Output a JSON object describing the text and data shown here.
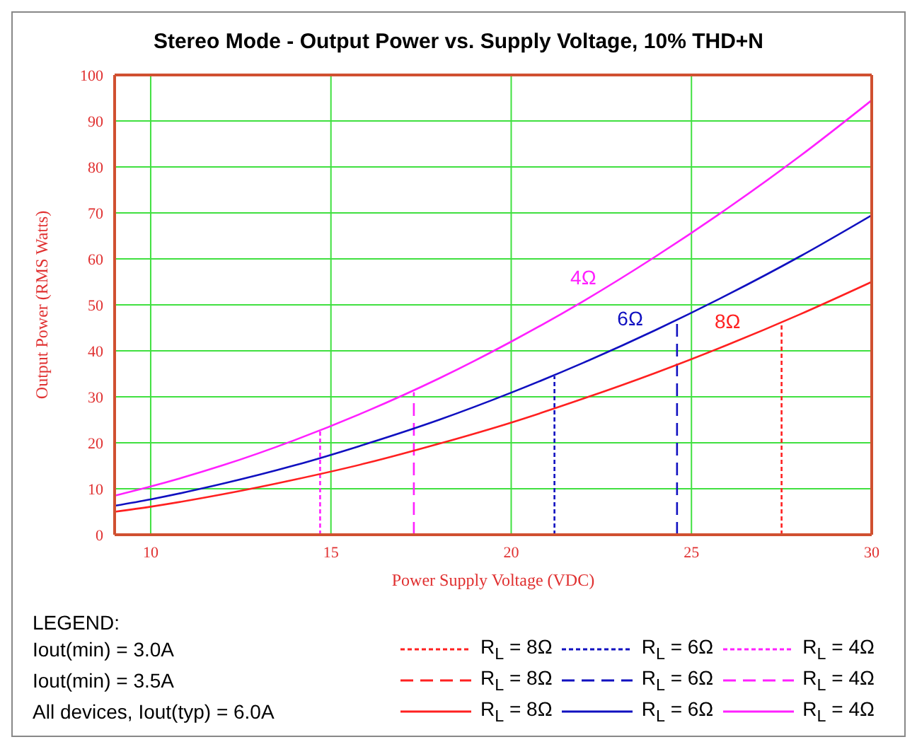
{
  "chart_data": {
    "type": "line",
    "title": "Stereo Mode - Output Power vs. Supply Voltage, 10% THD+N",
    "xlabel": "Power Supply Voltage (VDC)",
    "ylabel": "Output Power (RMS Watts)",
    "legend_title": "LEGEND:",
    "xlim": [
      9,
      30
    ],
    "xticks": [
      10,
      15,
      20,
      25,
      30
    ],
    "ylim": [
      0,
      100
    ],
    "yticks": [
      0,
      10,
      20,
      30,
      40,
      50,
      60,
      70,
      80,
      90,
      100
    ],
    "grid": true,
    "legend": "bottom",
    "series": [
      {
        "name": "R$_{L}$ = 8Ω",
        "color": "#ff2020",
        "line_style": "dotted",
        "x": [
          27.5,
          27.5
        ],
        "values": [
          0,
          46
        ]
      },
      {
        "name": "R$_{L}$ = 6Ω",
        "color": "#1010c0",
        "line_style": "dotted",
        "x": [
          21.2,
          21.2
        ],
        "values": [
          0,
          34.5
        ]
      },
      {
        "name": "R$_{L}$ = 4Ω",
        "color": "#ff20ff",
        "line_style": "dotted",
        "x": [
          14.7,
          14.7
        ],
        "values": [
          0,
          22.7
        ]
      },
      {
        "name": "R$_{L}$ = 8Ω",
        "color": "#ff2020",
        "line_style": "dashed"
      },
      {
        "name": "R$_{L}$ = 6Ω",
        "color": "#1010c0",
        "line_style": "dashed",
        "x": [
          24.6,
          24.6
        ],
        "values": [
          0,
          46.5
        ]
      },
      {
        "name": "R$_{L}$ = 4Ω",
        "color": "#ff20ff",
        "line_style": "dashed",
        "x": [
          17.3,
          17.3
        ],
        "values": [
          0,
          31
        ]
      },
      {
        "name": "R$_{L}$ = 8Ω",
        "color": "#ff2020",
        "line_style": "solid",
        "x": [
          9,
          10,
          12,
          14,
          16,
          18,
          20,
          22,
          24,
          26,
          28,
          30
        ],
        "values": [
          5,
          6.1,
          8.8,
          12,
          15.6,
          19.8,
          24.4,
          29.6,
          35.2,
          41.3,
          47.9,
          55
        ]
      },
      {
        "name": "R$_{L}$ = 6Ω",
        "color": "#1010c0",
        "line_style": "solid",
        "x": [
          9,
          10,
          12,
          14,
          16,
          18,
          20,
          22,
          24,
          26,
          28,
          30
        ],
        "values": [
          6.3,
          7.7,
          11.1,
          15.1,
          19.8,
          25,
          30.9,
          37.4,
          44.5,
          52.2,
          60.5,
          69.5
        ]
      },
      {
        "name": "R$_{L}$ = 4Ω",
        "color": "#ff20ff",
        "line_style": "solid",
        "x": [
          9,
          10,
          12,
          14,
          16,
          18,
          20,
          22,
          24,
          26,
          28,
          30
        ],
        "values": [
          8.5,
          10.5,
          15.1,
          20.6,
          26.9,
          34,
          42,
          50.8,
          60.5,
          71,
          82.3,
          94.5
        ]
      }
    ],
    "annotations": [
      {
        "text": "8Ω",
        "x": 26,
        "y": 41.3
      },
      {
        "text": "6Ω",
        "x": 23.3,
        "y": 41.9
      },
      {
        "text": "4Ω",
        "x": 22,
        "y": 50.8
      },
      "Iout(min)  = 3.0A",
      "Iout(min)  = 3.5A",
      "All devices, Iout(typ)   = 6.0A"
    ]
  }
}
